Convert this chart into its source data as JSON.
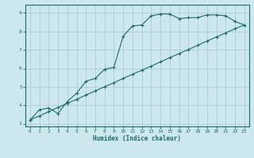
{
  "xlabel": "Humidex (Indice chaleur)",
  "background_color": "#cce8ec",
  "grid_color": "#aacdd4",
  "line_color": "#1a6b6b",
  "xlim": [
    -0.5,
    23.5
  ],
  "ylim": [
    2.85,
    9.45
  ],
  "xticks": [
    0,
    1,
    2,
    3,
    4,
    5,
    6,
    7,
    8,
    9,
    10,
    11,
    12,
    13,
    14,
    15,
    16,
    17,
    18,
    19,
    20,
    21,
    22,
    23
  ],
  "yticks": [
    3,
    4,
    5,
    6,
    7,
    8,
    9
  ],
  "curve1_x": [
    0,
    1,
    2,
    3,
    4,
    5,
    6,
    7,
    8,
    9,
    10,
    11,
    12,
    13,
    14,
    15,
    16,
    17,
    18,
    19,
    20,
    21,
    22,
    23
  ],
  "curve1_y": [
    3.2,
    3.75,
    3.85,
    3.55,
    4.2,
    4.65,
    5.3,
    5.45,
    5.95,
    6.05,
    7.75,
    8.3,
    8.35,
    8.85,
    8.95,
    8.95,
    8.7,
    8.75,
    8.75,
    8.9,
    8.9,
    8.85,
    8.55,
    8.35
  ],
  "curve2_x": [
    0,
    1,
    2,
    3,
    4,
    5,
    6,
    7,
    8,
    9,
    10,
    11,
    12,
    13,
    14,
    15,
    16,
    17,
    18,
    19,
    20,
    21,
    22,
    23
  ],
  "curve2_y": [
    3.2,
    3.42,
    3.65,
    3.88,
    4.1,
    4.32,
    4.55,
    4.78,
    5.0,
    5.22,
    5.45,
    5.68,
    5.9,
    6.12,
    6.35,
    6.58,
    6.8,
    7.02,
    7.25,
    7.48,
    7.7,
    7.92,
    8.15,
    8.35
  ]
}
